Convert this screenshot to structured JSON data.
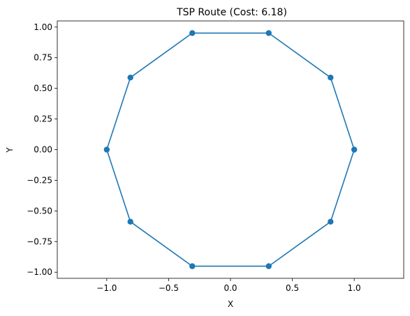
{
  "chart_data": {
    "type": "line",
    "title": "TSP Route (Cost: 6.18)",
    "xlabel": "X",
    "ylabel": "Y",
    "xlim": [
      -1.4,
      1.4
    ],
    "ylim": [
      -1.05,
      1.05
    ],
    "grid": false,
    "series_color": "#1f77b4",
    "x_ticks": [
      -1.0,
      -0.5,
      0.0,
      0.5,
      1.0
    ],
    "x_tick_labels": [
      "−1.0",
      "−0.5",
      "0.0",
      "0.5",
      "1.0"
    ],
    "y_ticks": [
      1.0,
      0.75,
      0.5,
      0.25,
      0.0,
      -0.25,
      -0.5,
      -0.75,
      -1.0
    ],
    "y_tick_labels": [
      "1.00",
      "0.75",
      "0.50",
      "0.25",
      "0.00",
      "−0.25",
      "−0.50",
      "−0.75",
      "−1.00"
    ],
    "series": [
      {
        "x": [
          1.0,
          0.809,
          0.309,
          -0.309,
          -0.809,
          -1.0,
          -0.809,
          -0.309,
          0.309,
          0.809,
          1.0
        ],
        "y": [
          0.0,
          0.588,
          0.951,
          0.951,
          0.588,
          0.0,
          -0.588,
          -0.951,
          -0.951,
          -0.588,
          0.0
        ]
      }
    ]
  }
}
